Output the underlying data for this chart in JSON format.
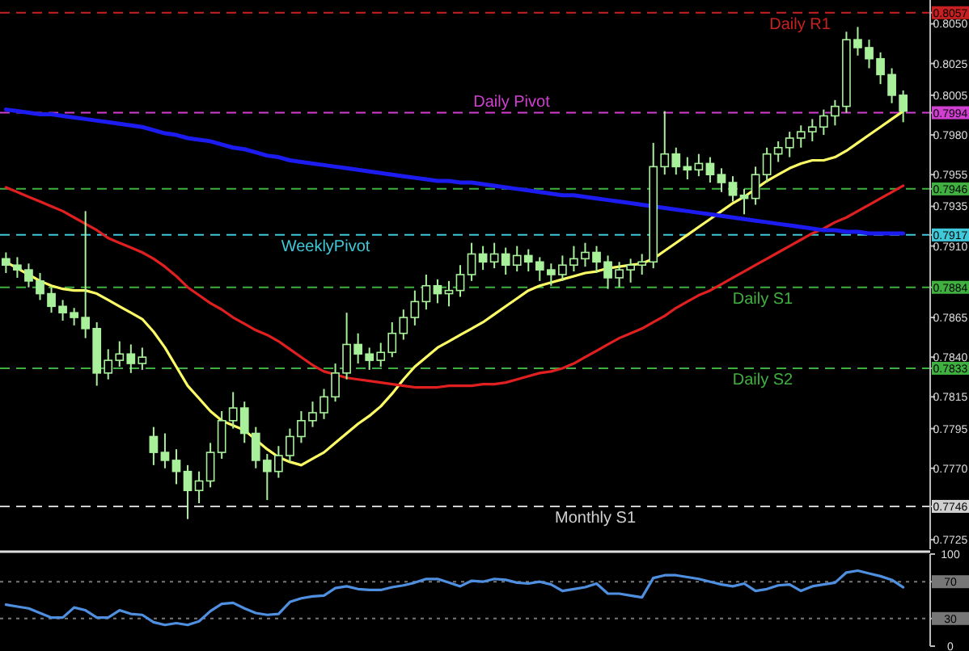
{
  "chart_data": [
    {
      "type": "candlestick",
      "color": "#a8f09a",
      "categories": [
        null,
        null,
        null,
        null,
        null,
        null,
        null,
        null,
        null,
        null,
        null,
        null,
        null,
        null,
        null,
        null,
        null,
        null,
        null,
        null,
        null,
        null,
        null,
        null,
        null,
        null,
        null,
        null,
        null,
        null,
        null,
        null,
        null,
        null,
        null,
        null,
        null,
        null,
        null,
        null,
        null,
        null,
        null,
        null,
        null,
        null,
        null,
        null,
        null,
        null,
        null,
        null,
        null,
        null,
        null,
        null,
        null,
        null,
        null,
        null,
        null,
        null,
        null,
        null,
        null,
        null,
        null,
        null,
        null,
        null,
        null,
        null,
        null,
        null,
        null,
        null,
        null,
        null,
        null,
        null
      ],
      "ohlc": [
        [
          0.7902,
          0.7906,
          0.7893,
          0.7898
        ],
        [
          0.7898,
          0.7903,
          0.789,
          0.7895
        ],
        [
          0.7895,
          0.7899,
          0.7884,
          0.7888
        ],
        [
          0.7888,
          0.7893,
          0.7876,
          0.788
        ],
        [
          0.788,
          0.7884,
          0.7868,
          0.7872
        ],
        [
          0.7872,
          0.7876,
          0.7863,
          0.7868
        ],
        [
          0.7868,
          0.7871,
          0.786,
          0.7865
        ],
        [
          0.7865,
          0.7932,
          0.7852,
          0.7858
        ],
        [
          0.7858,
          0.7862,
          0.7822,
          0.783
        ],
        [
          0.783,
          0.7845,
          0.7826,
          0.7838
        ],
        [
          0.7838,
          0.785,
          0.7834,
          0.7842
        ],
        [
          0.7842,
          0.7848,
          0.783,
          0.7836
        ],
        [
          0.7836,
          0.7846,
          0.7832,
          0.784
        ],
        [
          0.779,
          0.7796,
          0.7772,
          0.778
        ],
        [
          0.778,
          0.7792,
          0.777,
          0.7775
        ],
        [
          0.7775,
          0.7782,
          0.776,
          0.7768
        ],
        [
          0.7768,
          0.7772,
          0.7738,
          0.7756
        ],
        [
          0.7756,
          0.7768,
          0.7748,
          0.7762
        ],
        [
          0.7762,
          0.7786,
          0.7758,
          0.778
        ],
        [
          0.778,
          0.7806,
          0.7776,
          0.78
        ],
        [
          0.78,
          0.7818,
          0.7795,
          0.7808
        ],
        [
          0.7808,
          0.7812,
          0.7786,
          0.7792
        ],
        [
          0.7792,
          0.7796,
          0.777,
          0.7775
        ],
        [
          0.7775,
          0.7779,
          0.775,
          0.7768
        ],
        [
          0.7768,
          0.7784,
          0.7764,
          0.7778
        ],
        [
          0.7778,
          0.7795,
          0.7774,
          0.779
        ],
        [
          0.779,
          0.7806,
          0.7786,
          0.78
        ],
        [
          0.78,
          0.7812,
          0.7796,
          0.7805
        ],
        [
          0.7805,
          0.782,
          0.7801,
          0.7815
        ],
        [
          0.7815,
          0.7836,
          0.7812,
          0.783
        ],
        [
          0.783,
          0.7868,
          0.7826,
          0.7848
        ],
        [
          0.7848,
          0.7855,
          0.7836,
          0.7842
        ],
        [
          0.7842,
          0.7846,
          0.7832,
          0.7838
        ],
        [
          0.7838,
          0.7849,
          0.7834,
          0.7843
        ],
        [
          0.7843,
          0.7862,
          0.784,
          0.7855
        ],
        [
          0.7855,
          0.787,
          0.7851,
          0.7865
        ],
        [
          0.7865,
          0.7882,
          0.786,
          0.7875
        ],
        [
          0.7875,
          0.7892,
          0.787,
          0.7885
        ],
        [
          0.7885,
          0.7889,
          0.7874,
          0.788
        ],
        [
          0.788,
          0.7888,
          0.7872,
          0.7882
        ],
        [
          0.7882,
          0.7898,
          0.7878,
          0.7892
        ],
        [
          0.7892,
          0.7912,
          0.7888,
          0.7905
        ],
        [
          0.7905,
          0.791,
          0.7895,
          0.79
        ],
        [
          0.79,
          0.7912,
          0.7896,
          0.7905
        ],
        [
          0.7905,
          0.7909,
          0.7892,
          0.7898
        ],
        [
          0.7898,
          0.791,
          0.7894,
          0.7904
        ],
        [
          0.7904,
          0.7908,
          0.7894,
          0.79
        ],
        [
          0.79,
          0.7903,
          0.7888,
          0.7895
        ],
        [
          0.7895,
          0.7899,
          0.7885,
          0.7892
        ],
        [
          0.7892,
          0.7904,
          0.7888,
          0.7898
        ],
        [
          0.7898,
          0.791,
          0.7894,
          0.7902
        ],
        [
          0.7902,
          0.7912,
          0.7897,
          0.7906
        ],
        [
          0.7906,
          0.791,
          0.7893,
          0.79
        ],
        [
          0.79,
          0.7904,
          0.7883,
          0.789
        ],
        [
          0.789,
          0.79,
          0.7884,
          0.7895
        ],
        [
          0.7895,
          0.7902,
          0.7887,
          0.7898
        ],
        [
          0.7898,
          0.7905,
          0.7892,
          0.79
        ],
        [
          0.79,
          0.7975,
          0.7896,
          0.796
        ],
        [
          0.796,
          0.7995,
          0.7955,
          0.7968
        ],
        [
          0.7968,
          0.7972,
          0.7955,
          0.796
        ],
        [
          0.796,
          0.7966,
          0.7952,
          0.7958
        ],
        [
          0.7958,
          0.7968,
          0.7954,
          0.7962
        ],
        [
          0.7962,
          0.7966,
          0.795,
          0.7955
        ],
        [
          0.7955,
          0.7959,
          0.7944,
          0.795
        ],
        [
          0.795,
          0.7954,
          0.7938,
          0.7942
        ],
        [
          0.7942,
          0.7946,
          0.793,
          0.794
        ],
        [
          0.794,
          0.796,
          0.7936,
          0.7955
        ],
        [
          0.7955,
          0.7972,
          0.795,
          0.7968
        ],
        [
          0.7968,
          0.7976,
          0.7963,
          0.7972
        ],
        [
          0.7972,
          0.7982,
          0.7966,
          0.7978
        ],
        [
          0.7978,
          0.7986,
          0.7972,
          0.7982
        ],
        [
          0.7982,
          0.799,
          0.7976,
          0.7985
        ],
        [
          0.7985,
          0.7996,
          0.798,
          0.7992
        ],
        [
          0.7992,
          0.8002,
          0.7986,
          0.7998
        ],
        [
          0.7998,
          0.8045,
          0.7994,
          0.804
        ],
        [
          0.804,
          0.8048,
          0.803,
          0.8035
        ],
        [
          0.8035,
          0.804,
          0.8022,
          0.8028
        ],
        [
          0.8028,
          0.8032,
          0.8012,
          0.8018
        ],
        [
          0.8018,
          0.8022,
          0.8,
          0.8005
        ],
        [
          0.8005,
          0.8008,
          0.7988,
          0.7995
        ]
      ],
      "series": [
        {
          "type": "line",
          "color": "#ffff66",
          "values": [
            0.79,
            0.7896,
            0.7892,
            0.7888,
            0.7885,
            0.7883,
            0.7882,
            0.7882,
            0.788,
            0.7876,
            0.7872,
            0.7868,
            0.7864,
            0.7856,
            0.7846,
            0.7834,
            0.7822,
            0.7814,
            0.7806,
            0.78,
            0.7797,
            0.7794,
            0.7788,
            0.7782,
            0.7777,
            0.7774,
            0.7772,
            0.7776,
            0.778,
            0.7786,
            0.7792,
            0.7798,
            0.7803,
            0.7809,
            0.7817,
            0.7826,
            0.7834,
            0.784,
            0.7846,
            0.785,
            0.7854,
            0.7858,
            0.7862,
            0.7867,
            0.7872,
            0.7877,
            0.7882,
            0.7885,
            0.7887,
            0.7889,
            0.7891,
            0.7893,
            0.7894,
            0.7896,
            0.7897,
            0.7898,
            0.7899,
            0.7902,
            0.7907,
            0.7912,
            0.7917,
            0.7922,
            0.7927,
            0.7932,
            0.7937,
            0.7941,
            0.7946,
            0.7951,
            0.7955,
            0.7959,
            0.7962,
            0.7964,
            0.7964,
            0.7966,
            0.797,
            0.7975,
            0.798,
            0.7985,
            0.799,
            0.7995
          ]
        },
        {
          "type": "line",
          "color": "#e02020",
          "values": [
            0.7947,
            0.7944,
            0.7941,
            0.7938,
            0.7935,
            0.7932,
            0.7928,
            0.7924,
            0.792,
            0.7915,
            0.7912,
            0.7909,
            0.7906,
            0.7902,
            0.7897,
            0.7891,
            0.7884,
            0.7879,
            0.7874,
            0.787,
            0.7865,
            0.7861,
            0.7857,
            0.7854,
            0.785,
            0.7845,
            0.784,
            0.7835,
            0.7831,
            0.7829,
            0.7827,
            0.7826,
            0.7825,
            0.7824,
            0.7823,
            0.7822,
            0.7821,
            0.7821,
            0.7821,
            0.7822,
            0.7822,
            0.7822,
            0.7823,
            0.7823,
            0.7824,
            0.7826,
            0.7828,
            0.783,
            0.7831,
            0.7833,
            0.7836,
            0.784,
            0.7844,
            0.7848,
            0.7852,
            0.7855,
            0.7858,
            0.7862,
            0.7866,
            0.7871,
            0.7875,
            0.7879,
            0.7882,
            0.7886,
            0.789,
            0.7894,
            0.7898,
            0.7902,
            0.7906,
            0.791,
            0.7914,
            0.7918,
            0.7921,
            0.7925,
            0.7928,
            0.7932,
            0.7936,
            0.794,
            0.7944,
            0.7948
          ]
        },
        {
          "type": "line",
          "color": "#1c1cf0",
          "values": [
            0.7996,
            0.7995,
            0.7994,
            0.7993,
            0.7993,
            0.7992,
            0.7991,
            0.799,
            0.7989,
            0.7988,
            0.7987,
            0.7986,
            0.7985,
            0.7983,
            0.7981,
            0.798,
            0.7978,
            0.7977,
            0.7976,
            0.7974,
            0.7972,
            0.7971,
            0.7969,
            0.7967,
            0.7966,
            0.7964,
            0.7963,
            0.7962,
            0.7961,
            0.796,
            0.7959,
            0.7958,
            0.7957,
            0.7956,
            0.7955,
            0.7954,
            0.7953,
            0.7952,
            0.7951,
            0.7951,
            0.795,
            0.795,
            0.7949,
            0.7948,
            0.7947,
            0.7946,
            0.7945,
            0.7944,
            0.7943,
            0.7942,
            0.7942,
            0.7941,
            0.794,
            0.7939,
            0.7938,
            0.7937,
            0.7936,
            0.7935,
            0.7934,
            0.7933,
            0.7932,
            0.7931,
            0.793,
            0.7929,
            0.7928,
            0.7927,
            0.7926,
            0.7925,
            0.7924,
            0.7923,
            0.7922,
            0.7921,
            0.792,
            0.792,
            0.7919,
            0.7919,
            0.7918,
            0.7918,
            0.7918,
            0.7918
          ]
        }
      ],
      "ylim": [
        0.7719,
        0.8065
      ],
      "yticks": [
        {
          "value": 0.805,
          "label": "0.8050"
        },
        0.8025,
        0.8005,
        {
          "value": 0.798,
          "label": "0.7980"
        },
        0.7955,
        0.7935,
        {
          "value": 0.791,
          "label": "0.7910"
        },
        0.7865,
        {
          "value": 0.784,
          "label": "0.7840"
        },
        0.7815,
        0.7795,
        {
          "value": 0.777,
          "label": "0.7770"
        },
        0.7725,
        0.8057,
        0.7994,
        0.7946,
        0.7917,
        0.7884,
        0.7833,
        0.7746
      ],
      "ref_lines": [
        {
          "axis": "y",
          "value": 0.8057,
          "label": "Daily R1",
          "color": "#c82020",
          "line_style": "dashed"
        },
        {
          "axis": "y",
          "value": 0.7994,
          "label": "Daily Pivot",
          "color": "#d040d0",
          "line_style": "dashed"
        },
        {
          "axis": "y",
          "value": 0.7946,
          "color": "#40b040",
          "line_style": "dashed"
        },
        {
          "axis": "y",
          "value": 0.7917,
          "label": "WeeklyPivot",
          "color": "#40c8d8",
          "line_style": "dashed"
        },
        {
          "axis": "y",
          "value": 0.7884,
          "label": "Daily S1",
          "color": "#40b040",
          "line_style": "dashed"
        },
        {
          "axis": "y",
          "value": 0.7833,
          "label": "Daily S2",
          "color": "#40b040",
          "line_style": "dashed"
        },
        {
          "axis": "y",
          "value": 0.7746,
          "label": "Monthly S1",
          "color": "#d0d0d0",
          "line_style": "dashed"
        }
      ],
      "tick_labels": "y"
    },
    {
      "type": "line",
      "color": "#4f8fe0",
      "categories": [
        null,
        null,
        null,
        null,
        null,
        null,
        null,
        null,
        null,
        null,
        null,
        null,
        null,
        null,
        null,
        null,
        null,
        null,
        null,
        null,
        null,
        null,
        null,
        null,
        null,
        null,
        null,
        null,
        null,
        null,
        null,
        null,
        null,
        null,
        null,
        null,
        null,
        null,
        null,
        null,
        null,
        null,
        null,
        null,
        null,
        null,
        null,
        null,
        null,
        null,
        null,
        null,
        null,
        null,
        null,
        null,
        null,
        null,
        null,
        null,
        null,
        null,
        null,
        null,
        null,
        null,
        null,
        null,
        null,
        null,
        null,
        null,
        null,
        null,
        null,
        null,
        null,
        null,
        null,
        null
      ],
      "values": [
        45,
        43,
        41,
        36,
        31,
        31,
        42,
        39,
        31,
        31,
        39,
        35,
        34,
        26,
        23,
        25,
        23,
        27,
        38,
        46,
        47,
        41,
        36,
        34,
        35,
        48,
        52,
        54,
        55,
        63,
        65,
        62,
        61,
        61,
        64,
        66,
        69,
        73,
        73,
        69,
        65,
        71,
        70,
        73,
        72,
        69,
        68,
        70,
        67,
        60,
        62,
        64,
        68,
        57,
        57,
        55,
        53,
        74,
        77,
        77,
        75,
        73,
        70,
        67,
        65,
        68,
        60,
        62,
        66,
        67,
        60,
        65,
        67,
        69,
        80,
        82,
        79,
        76,
        72,
        64
      ],
      "ylim": [
        0,
        100
      ],
      "yticks": [
        0,
        30,
        70,
        100
      ],
      "ref_lines": [
        {
          "axis": "y",
          "value": 70,
          "color": "#777777",
          "line_style": "dotted"
        },
        {
          "axis": "y",
          "value": 30,
          "color": "#777777",
          "line_style": "dotted"
        }
      ],
      "tick_labels": "y"
    }
  ]
}
